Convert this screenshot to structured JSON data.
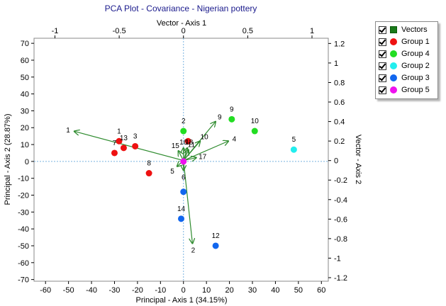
{
  "chart_data": {
    "type": "scatter",
    "title": "PCA Plot - Covariance - Nigerian pottery",
    "xlabel": "Principal - Axis 1 (34.15%)",
    "ylabel": "Principal - Axis 2 (28.87%)",
    "x2label": "Vector - Axis 1",
    "y2label": "Vector - Axis 2",
    "xlim": [
      -65,
      63
    ],
    "ylim": [
      -71,
      73
    ],
    "xticks": [
      -60,
      -50,
      -40,
      -30,
      -20,
      -10,
      0,
      10,
      20,
      30,
      40,
      50,
      60
    ],
    "yticks": [
      70,
      60,
      50,
      40,
      30,
      20,
      10,
      0,
      -10,
      -20,
      -30,
      -40,
      -50,
      -60,
      -70
    ],
    "x2lim": [
      -1.1626,
      1.1268
    ],
    "y2lim": [
      -1.2364,
      1.2535
    ],
    "x2ticks": [
      -1,
      -0.5,
      0,
      0.5,
      1
    ],
    "x2ticklabels": [
      "-1",
      "-0.5",
      "0",
      "0.5",
      "1"
    ],
    "y2ticks": [
      1.2,
      1,
      0.8,
      0.6,
      0.4,
      0.2,
      0,
      -0.2,
      -0.4,
      -0.6,
      -0.8,
      -1,
      -1.2
    ],
    "y2ticklabels": [
      "1.2",
      "1",
      "0.8",
      "0.6",
      "0.4",
      "0.2",
      "0",
      "-0.2",
      "-0.4",
      "-0.6",
      "-0.8",
      "-1",
      "-1.2"
    ],
    "legend_position": "outside-top-right",
    "legend": [
      {
        "label": "Vectors",
        "color": "#1a7a1a",
        "shape": "square",
        "checked": true
      },
      {
        "label": "Group 1",
        "color": "#ee1111",
        "shape": "circle",
        "checked": true
      },
      {
        "label": "Group 4",
        "color": "#22dd22",
        "shape": "circle",
        "checked": true
      },
      {
        "label": "Group 2",
        "color": "#22eeee",
        "shape": "circle",
        "checked": true
      },
      {
        "label": "Group 3",
        "color": "#1166ee",
        "shape": "circle",
        "checked": true
      },
      {
        "label": "Group 5",
        "color": "#ee11ee",
        "shape": "circle",
        "checked": true
      }
    ],
    "series": [
      {
        "name": "Group 1",
        "color": "#ee1111",
        "points": [
          {
            "label": "1",
            "x": -28,
            "y": 12
          },
          {
            "label": "7",
            "x": -30,
            "y": 5
          },
          {
            "label": "13",
            "x": -26,
            "y": 8
          },
          {
            "label": "3",
            "x": -21,
            "y": 9
          },
          {
            "label": "8",
            "x": -15,
            "y": -7
          },
          {
            "label": "",
            "x": 2,
            "y": 12
          }
        ]
      },
      {
        "name": "Group 4",
        "color": "#22dd22",
        "points": [
          {
            "label": "2",
            "x": 0,
            "y": 18
          },
          {
            "label": "9",
            "x": 21,
            "y": 25
          },
          {
            "label": "10",
            "x": 31,
            "y": 18
          }
        ]
      },
      {
        "name": "Group 2",
        "color": "#22eeee",
        "points": [
          {
            "label": "5",
            "x": 48,
            "y": 7
          }
        ]
      },
      {
        "name": "Group 3",
        "color": "#1166ee",
        "points": [
          {
            "label": "",
            "x": 0,
            "y": -18
          },
          {
            "label": "14",
            "x": -1,
            "y": -34
          },
          {
            "label": "12",
            "x": 14,
            "y": -50
          }
        ]
      },
      {
        "name": "Group 5",
        "color": "#ee11ee",
        "points": [
          {
            "label": "",
            "x": 0,
            "y": 0
          }
        ]
      }
    ],
    "vectors": {
      "color": "#2e8b2e",
      "items": [
        {
          "label": "1",
          "x": -0.85,
          "y": 0.3
        },
        {
          "label": "9",
          "x": 0.25,
          "y": 0.4
        },
        {
          "label": "10",
          "x": 0.13,
          "y": 0.2
        },
        {
          "label": "4",
          "x": 0.35,
          "y": 0.2
        },
        {
          "label": "17",
          "x": 0.1,
          "y": 0.03
        },
        {
          "label": "2",
          "x": 0.07,
          "y": -0.85
        },
        {
          "label": "6",
          "x": 0.0,
          "y": -0.1
        },
        {
          "label": "5",
          "x": -0.05,
          "y": -0.06
        },
        {
          "label": "15",
          "x": -0.04,
          "y": 0.1
        },
        {
          "label": "16",
          "x": 0.0,
          "y": 0.13
        },
        {
          "label": "18",
          "x": 0.03,
          "y": 0.13
        },
        {
          "label": "11",
          "x": 0.04,
          "y": 0.11
        }
      ]
    }
  }
}
